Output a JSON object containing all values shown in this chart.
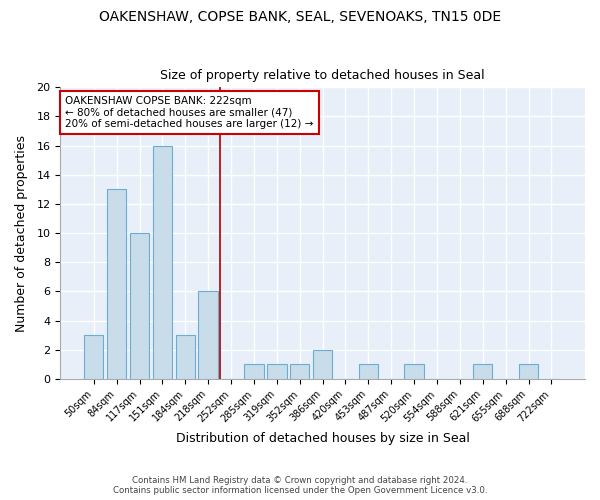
{
  "title_line1": "OAKENSHAW, COPSE BANK, SEAL, SEVENOAKS, TN15 0DE",
  "title_line2": "Size of property relative to detached houses in Seal",
  "categories": [
    "50sqm",
    "84sqm",
    "117sqm",
    "151sqm",
    "184sqm",
    "218sqm",
    "252sqm",
    "285sqm",
    "319sqm",
    "352sqm",
    "386sqm",
    "420sqm",
    "453sqm",
    "487sqm",
    "520sqm",
    "554sqm",
    "588sqm",
    "621sqm",
    "655sqm",
    "688sqm",
    "722sqm"
  ],
  "values": [
    3,
    13,
    10,
    16,
    3,
    6,
    0,
    1,
    1,
    1,
    2,
    0,
    1,
    0,
    1,
    0,
    0,
    1,
    0,
    1,
    0
  ],
  "bar_color": "#c9dcea",
  "bar_edge_color": "#6aaed6",
  "xlabel": "Distribution of detached houses by size in Seal",
  "ylabel": "Number of detached properties",
  "ylim": [
    0,
    20
  ],
  "yticks": [
    0,
    2,
    4,
    6,
    8,
    10,
    12,
    14,
    16,
    18,
    20
  ],
  "vline_x": 5.5,
  "vline_color": "#aa0000",
  "annotation_title": "OAKENSHAW COPSE BANK: 222sqm",
  "annotation_line2": "← 80% of detached houses are smaller (47)",
  "annotation_line3": "20% of semi-detached houses are larger (12) →",
  "annotation_box_color": "#ffffff",
  "annotation_box_edge": "#cc0000",
  "background_color": "#e8eff8",
  "grid_color": "#d0dce8",
  "footer_line1": "Contains HM Land Registry data © Crown copyright and database right 2024.",
  "footer_line2": "Contains public sector information licensed under the Open Government Licence v3.0."
}
